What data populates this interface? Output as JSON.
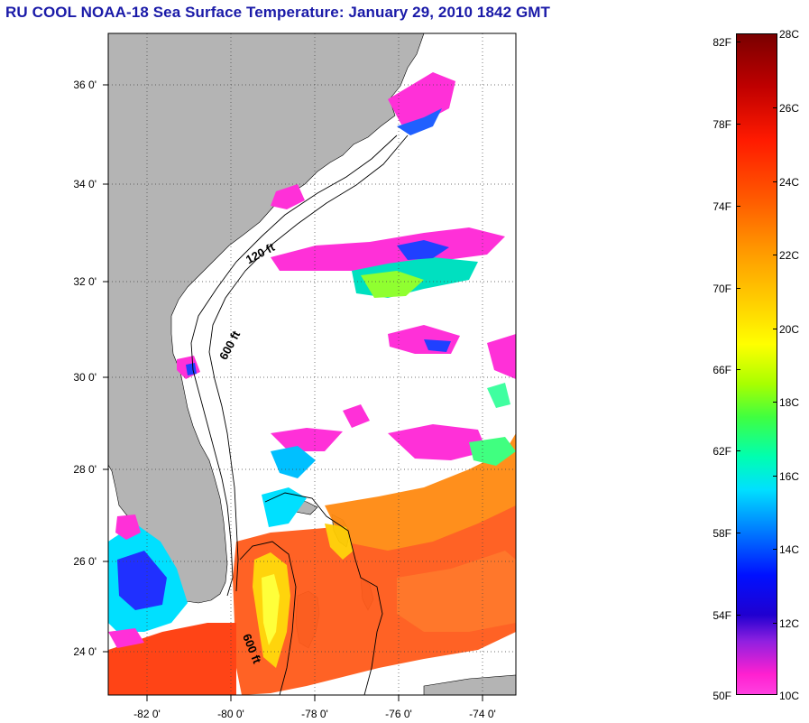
{
  "title": "RU COOL  NOAA-18  Sea Surface Temperature:  January 29, 2010 1842 GMT",
  "map": {
    "region": "US Southeast coast and Bahamas",
    "projection": "lat/lon",
    "colors": {
      "land": "#b4b4b4",
      "ocean_no_data": "#ffffff",
      "grid": "#000000"
    }
  },
  "lat_labels": [
    "36 0'",
    "34 0'",
    "32 0'",
    "30 0'",
    "28 0'",
    "26 0'",
    "24 0'"
  ],
  "lon_labels": [
    "-82 0'",
    "-80 0'",
    "-78 0'",
    "-76 0'",
    "-74 0'"
  ],
  "isobath_labels": [
    "120 ft",
    "600 ft",
    "600 ft"
  ],
  "colorbar": {
    "fahrenheit_labels": [
      "82F",
      "78F",
      "74F",
      "70F",
      "66F",
      "62F",
      "58F",
      "54F",
      "50F"
    ],
    "celsius_labels": [
      "28C",
      "26C",
      "24C",
      "22C",
      "20C",
      "18C",
      "16C",
      "14C",
      "12C",
      "10C"
    ],
    "colors": [
      "#7a0000",
      "#ff1a00",
      "#ff9a00",
      "#ffff00",
      "#40ff40",
      "#00e0ff",
      "#0010ff",
      "#9020e0",
      "#ff20d0"
    ]
  }
}
